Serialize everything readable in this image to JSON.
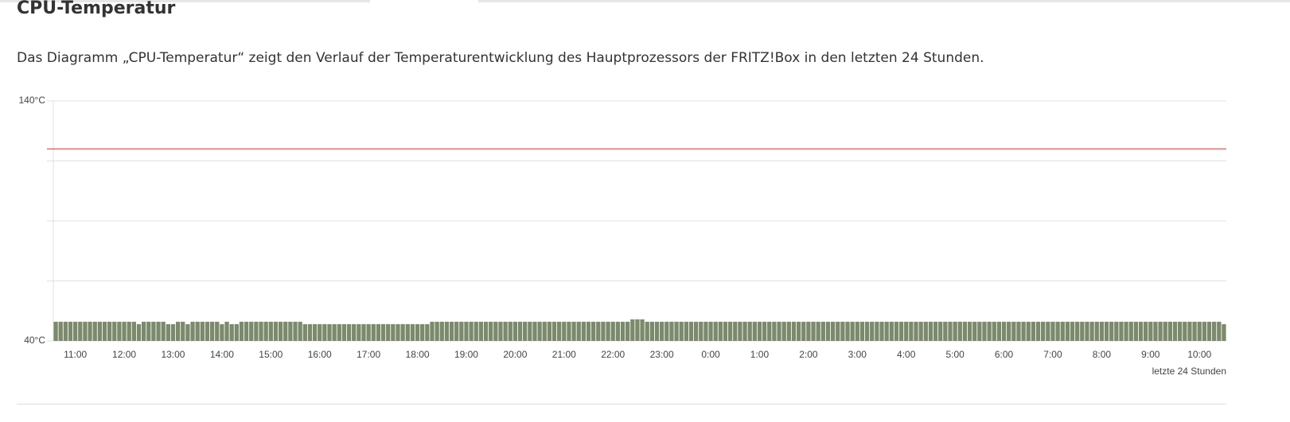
{
  "heading": "CPU-Temperatur",
  "description": "Das Diagramm „CPU-Temperatur“ zeigt den Verlauf der Temperaturentwicklung des Hauptprozessors der FRITZ!Box in den letzten 24 Stunden.",
  "chart_data": {
    "type": "bar",
    "xlabel": "letzte 24 Stunden",
    "color": "#7b8a6b",
    "ylim": [
      40,
      140
    ],
    "yticks": [
      {
        "value": 40,
        "label": "40°C"
      },
      {
        "value": 65,
        "label": null
      },
      {
        "value": 90,
        "label": null
      },
      {
        "value": 115,
        "label": null
      },
      {
        "value": 140,
        "label": "140°C"
      }
    ],
    "grid": true,
    "threshold": 120,
    "threshold_color": "#d9332b",
    "categories": [
      null,
      null,
      null,
      null,
      "11:00",
      null,
      null,
      null,
      null,
      null,
      null,
      null,
      null,
      null,
      "12:00",
      null,
      null,
      null,
      null,
      null,
      null,
      null,
      null,
      null,
      "13:00",
      null,
      null,
      null,
      null,
      null,
      null,
      null,
      null,
      null,
      "14:00",
      null,
      null,
      null,
      null,
      null,
      null,
      null,
      null,
      null,
      "15:00",
      null,
      null,
      null,
      null,
      null,
      null,
      null,
      null,
      null,
      "16:00",
      null,
      null,
      null,
      null,
      null,
      null,
      null,
      null,
      null,
      "17:00",
      null,
      null,
      null,
      null,
      null,
      null,
      null,
      null,
      null,
      "18:00",
      null,
      null,
      null,
      null,
      null,
      null,
      null,
      null,
      null,
      "19:00",
      null,
      null,
      null,
      null,
      null,
      null,
      null,
      null,
      null,
      "20:00",
      null,
      null,
      null,
      null,
      null,
      null,
      null,
      null,
      null,
      "21:00",
      null,
      null,
      null,
      null,
      null,
      null,
      null,
      null,
      null,
      "22:00",
      null,
      null,
      null,
      null,
      null,
      null,
      null,
      null,
      null,
      "23:00",
      null,
      null,
      null,
      null,
      null,
      null,
      null,
      null,
      null,
      "0:00",
      null,
      null,
      null,
      null,
      null,
      null,
      null,
      null,
      null,
      "1:00",
      null,
      null,
      null,
      null,
      null,
      null,
      null,
      null,
      null,
      "2:00",
      null,
      null,
      null,
      null,
      null,
      null,
      null,
      null,
      null,
      "3:00",
      null,
      null,
      null,
      null,
      null,
      null,
      null,
      null,
      null,
      "4:00",
      null,
      null,
      null,
      null,
      null,
      null,
      null,
      null,
      null,
      "5:00",
      null,
      null,
      null,
      null,
      null,
      null,
      null,
      null,
      null,
      "6:00",
      null,
      null,
      null,
      null,
      null,
      null,
      null,
      null,
      null,
      "7:00",
      null,
      null,
      null,
      null,
      null,
      null,
      null,
      null,
      null,
      "8:00",
      null,
      null,
      null,
      null,
      null,
      null,
      null,
      null,
      null,
      "9:00",
      null,
      null,
      null,
      null,
      null,
      null,
      null,
      null,
      null,
      "10:00",
      null,
      null,
      null,
      null,
      null
    ],
    "values": [
      48,
      48,
      48,
      48,
      48,
      48,
      48,
      48,
      48,
      48,
      48,
      48,
      48,
      48,
      48,
      48,
      48,
      47,
      48,
      48,
      48,
      48,
      48,
      47,
      47,
      48,
      48,
      47,
      48,
      48,
      48,
      48,
      48,
      48,
      47,
      48,
      47,
      47,
      48,
      48,
      48,
      48,
      48,
      48,
      48,
      48,
      48,
      48,
      48,
      48,
      48,
      47,
      47,
      47,
      47,
      47,
      47,
      47,
      47,
      47,
      47,
      47,
      47,
      47,
      47,
      47,
      47,
      47,
      47,
      47,
      47,
      47,
      47,
      47,
      47,
      47,
      47,
      48,
      48,
      48,
      48,
      48,
      48,
      48,
      48,
      48,
      48,
      48,
      48,
      48,
      48,
      48,
      48,
      48,
      48,
      48,
      48,
      48,
      48,
      48,
      48,
      48,
      48,
      48,
      48,
      48,
      48,
      48,
      48,
      48,
      48,
      48,
      48,
      48,
      48,
      48,
      48,
      48,
      49,
      49,
      49,
      48,
      48,
      48,
      48,
      48,
      48,
      48,
      48,
      48,
      48,
      48,
      48,
      48,
      48,
      48,
      48,
      48,
      48,
      48,
      48,
      48,
      48,
      48,
      48,
      48,
      48,
      48,
      48,
      48,
      48,
      48,
      48,
      48,
      48,
      48,
      48,
      48,
      48,
      48,
      48,
      48,
      48,
      48,
      48,
      48,
      48,
      48,
      48,
      48,
      48,
      48,
      48,
      48,
      48,
      48,
      48,
      48,
      48,
      48,
      48,
      48,
      48,
      48,
      48,
      48,
      48,
      48,
      48,
      48,
      48,
      48,
      48,
      48,
      48,
      48,
      48,
      48,
      48,
      48,
      48,
      48,
      48,
      48,
      48,
      48,
      48,
      48,
      48,
      48,
      48,
      48,
      48,
      48,
      48,
      48,
      48,
      48,
      48,
      48,
      48,
      48,
      48,
      48,
      48,
      48,
      48,
      48,
      48,
      48,
      48,
      48,
      48,
      48,
      48,
      48,
      48,
      48,
      48,
      47
    ]
  }
}
